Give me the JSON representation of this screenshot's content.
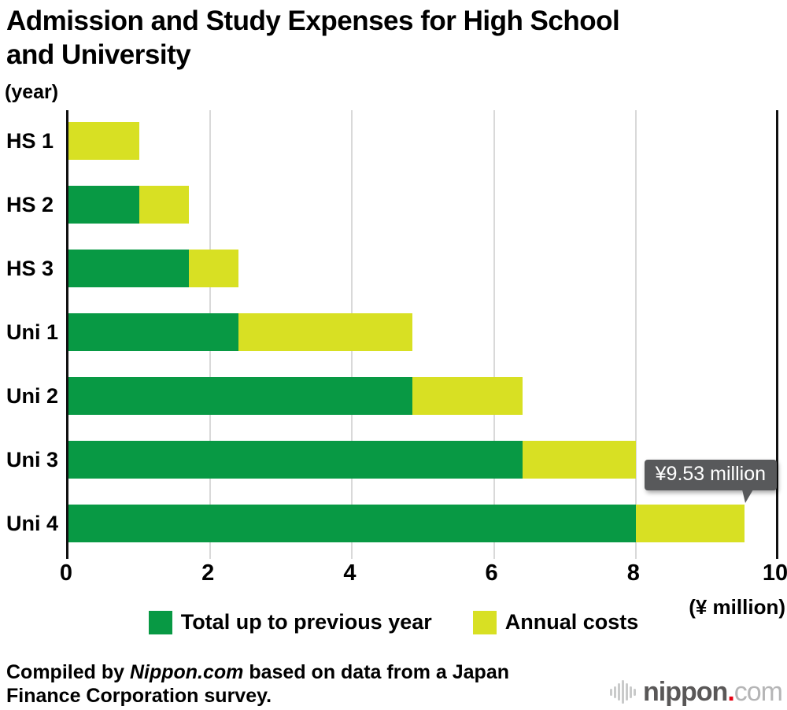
{
  "title": {
    "text": "Admission and Study Expenses for High School and University",
    "lines": [
      "Admission and Study Expenses for High School",
      "and University"
    ]
  },
  "y_axis_unit": "(year)",
  "x_axis_unit": "(¥ million)",
  "legend": [
    {
      "label": "Total up to previous year",
      "color": "#089944"
    },
    {
      "label": "Annual costs",
      "color": "#d8e023"
    }
  ],
  "footer": {
    "prefix": "Compiled by ",
    "source": "Nippon.com",
    "suffix": " based on data from a Japan Finance Corporation survey."
  },
  "logo": {
    "name": "nippon",
    "dot": ".",
    "tld": "com"
  },
  "colors": {
    "green": "#089944",
    "yellow": "#d8e023",
    "gridline": "#d9d9d9",
    "axis": "#111111",
    "tooltip_bg": "#58595b"
  },
  "chart_data": {
    "type": "bar",
    "orientation": "horizontal",
    "stacked": true,
    "title": "Admission and Study Expenses for High School and University",
    "xlabel": "(¥ million)",
    "ylabel": "(year)",
    "categories": [
      "HS 1",
      "HS 2",
      "HS 3",
      "Uni 1",
      "Uni 2",
      "Uni 3",
      "Uni 4"
    ],
    "series": [
      {
        "name": "Total up to previous year",
        "color": "#089944",
        "values": [
          0,
          1.0,
          1.7,
          2.4,
          4.85,
          6.4,
          8.0
        ]
      },
      {
        "name": "Annual costs",
        "color": "#d8e023",
        "values": [
          1.0,
          0.7,
          0.7,
          2.45,
          1.55,
          1.6,
          1.53
        ]
      }
    ],
    "totals": [
      1.0,
      1.7,
      2.4,
      4.85,
      6.4,
      8.0,
      9.53
    ],
    "x_ticks": [
      0,
      2,
      4,
      6,
      8,
      10
    ],
    "xlim": [
      0,
      10
    ],
    "grid": true,
    "legend_position": "bottom",
    "annotation": {
      "category": "Uni 4",
      "text": "¥9.53 million"
    }
  }
}
